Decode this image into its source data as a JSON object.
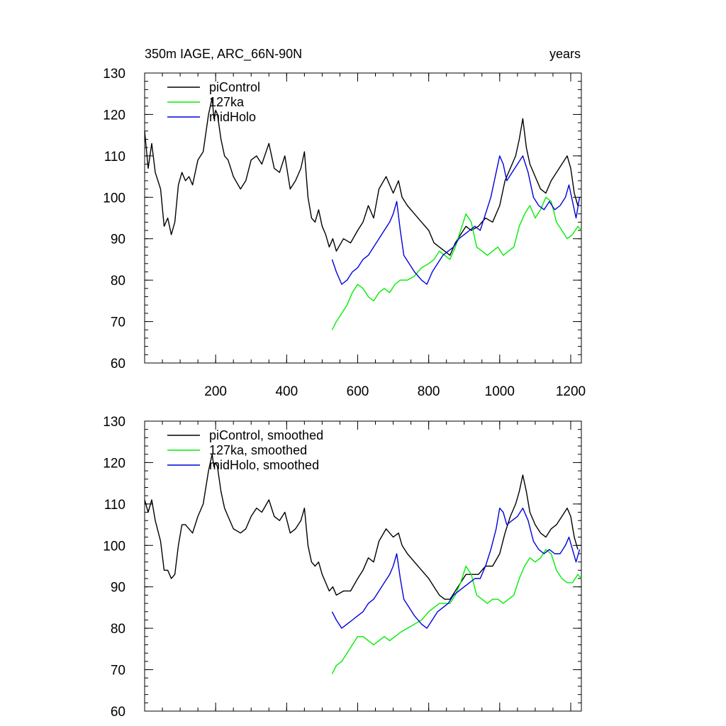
{
  "figure": {
    "title": "350m IAGE, ARC_66N-90N",
    "units": "years"
  },
  "chart_data": [
    {
      "type": "line",
      "title": "350m IAGE, ARC_66N-90N",
      "ylabel": "years",
      "xlim": [
        0,
        1230
      ],
      "ylim": [
        60,
        130
      ],
      "yticks": [
        60,
        70,
        80,
        90,
        100,
        110,
        120,
        130
      ],
      "xticks": [
        200,
        400,
        600,
        800,
        1000,
        1200
      ],
      "x_tick_labels_shown": true,
      "legend_position": "top-left",
      "series": [
        {
          "name": "piControl",
          "color": "#000000",
          "x": [
            0,
            10,
            20,
            30,
            45,
            55,
            65,
            75,
            85,
            95,
            105,
            115,
            125,
            135,
            150,
            165,
            180,
            190,
            195,
            200,
            205,
            210,
            215,
            225,
            235,
            250,
            270,
            285,
            300,
            315,
            330,
            350,
            365,
            380,
            395,
            410,
            425,
            440,
            450,
            460,
            470,
            480,
            490,
            500,
            510,
            520,
            530,
            540,
            560,
            580,
            600,
            615,
            630,
            645,
            660,
            680,
            700,
            715,
            725,
            740,
            760,
            780,
            800,
            815,
            830,
            845,
            860,
            875,
            890,
            905,
            920,
            940,
            960,
            980,
            1000,
            1015,
            1030,
            1045,
            1055,
            1065,
            1075,
            1085,
            1100,
            1115,
            1130,
            1145,
            1160,
            1175,
            1190,
            1200,
            1210,
            1220
          ],
          "y": [
            116,
            107,
            113,
            106,
            102,
            93,
            95,
            91,
            94,
            103,
            106,
            104,
            105,
            103,
            109,
            111,
            120,
            124,
            119,
            121,
            120,
            117,
            114,
            110,
            109,
            105,
            102,
            104,
            109,
            110,
            108,
            113,
            107,
            106,
            110,
            102,
            104,
            107,
            111,
            100,
            95,
            94,
            97,
            93,
            91,
            88,
            90,
            87,
            90,
            89,
            92,
            94,
            98,
            95,
            102,
            105,
            101,
            104,
            100,
            98,
            96,
            94,
            92,
            89,
            88,
            87,
            86,
            89,
            91,
            93,
            92,
            93,
            95,
            94,
            98,
            104,
            107,
            110,
            114,
            119,
            112,
            108,
            105,
            102,
            101,
            104,
            106,
            108,
            110,
            107,
            101,
            98
          ]
        },
        {
          "name": "127ka",
          "color": "#00ee00",
          "x": [
            528,
            540,
            555,
            570,
            585,
            600,
            615,
            630,
            645,
            660,
            675,
            690,
            705,
            720,
            740,
            760,
            780,
            800,
            815,
            830,
            845,
            860,
            875,
            890,
            905,
            920,
            935,
            950,
            965,
            980,
            995,
            1010,
            1025,
            1040,
            1055,
            1070,
            1085,
            1100,
            1115,
            1130,
            1145,
            1160,
            1175,
            1190,
            1205,
            1220,
            1230
          ],
          "y": [
            68,
            70,
            72,
            74,
            77,
            79,
            78,
            76,
            75,
            77,
            78,
            77,
            79,
            80,
            80,
            81,
            83,
            84,
            85,
            87,
            86,
            85,
            88,
            92,
            96,
            94,
            88,
            87,
            86,
            87,
            88,
            86,
            87,
            88,
            93,
            96,
            98,
            95,
            97,
            100,
            99,
            94,
            92,
            90,
            91,
            93,
            92
          ]
        },
        {
          "name": "midHolo",
          "color": "#0000dd",
          "x": [
            528,
            540,
            555,
            570,
            585,
            600,
            615,
            630,
            645,
            660,
            675,
            690,
            700,
            710,
            720,
            730,
            745,
            760,
            780,
            795,
            810,
            825,
            840,
            855,
            870,
            885,
            900,
            915,
            930,
            945,
            960,
            975,
            990,
            1000,
            1010,
            1020,
            1035,
            1050,
            1065,
            1080,
            1095,
            1110,
            1125,
            1140,
            1155,
            1170,
            1185,
            1195,
            1205,
            1215,
            1225
          ],
          "y": [
            85,
            82,
            79,
            80,
            82,
            83,
            85,
            86,
            88,
            90,
            92,
            94,
            96,
            99,
            92,
            86,
            84,
            82,
            80,
            79,
            82,
            84,
            86,
            87,
            88,
            90,
            91,
            92,
            93,
            92,
            96,
            100,
            106,
            110,
            108,
            104,
            106,
            108,
            110,
            106,
            100,
            98,
            97,
            99,
            97,
            98,
            100,
            103,
            99,
            95,
            100
          ]
        }
      ]
    },
    {
      "type": "line",
      "title": "",
      "ylabel": "",
      "xlim": [
        0,
        1230
      ],
      "ylim": [
        60,
        130
      ],
      "yticks": [
        60,
        70,
        80,
        90,
        100,
        110,
        120,
        130
      ],
      "xticks": [
        200,
        400,
        600,
        800,
        1000,
        1200
      ],
      "x_tick_labels_shown": false,
      "legend_position": "top-left",
      "series": [
        {
          "name": "piControl, smoothed",
          "color": "#000000",
          "x": [
            0,
            10,
            20,
            30,
            45,
            55,
            65,
            75,
            85,
            95,
            105,
            115,
            125,
            135,
            150,
            165,
            180,
            190,
            195,
            200,
            205,
            210,
            215,
            225,
            235,
            250,
            270,
            285,
            300,
            315,
            330,
            350,
            365,
            380,
            395,
            410,
            425,
            440,
            450,
            460,
            470,
            480,
            490,
            500,
            510,
            520,
            530,
            540,
            560,
            580,
            600,
            615,
            630,
            645,
            660,
            680,
            700,
            715,
            725,
            740,
            760,
            780,
            800,
            815,
            830,
            845,
            860,
            875,
            890,
            905,
            920,
            940,
            960,
            980,
            1000,
            1015,
            1030,
            1045,
            1055,
            1065,
            1075,
            1085,
            1100,
            1115,
            1130,
            1145,
            1160,
            1175,
            1190,
            1200,
            1210,
            1220
          ],
          "y": [
            111,
            108,
            111,
            106,
            101,
            94,
            94,
            92,
            93,
            100,
            105,
            105,
            104,
            103,
            107,
            110,
            118,
            122,
            119,
            120,
            119,
            116,
            113,
            109,
            107,
            104,
            103,
            104,
            107,
            109,
            108,
            111,
            107,
            106,
            108,
            103,
            104,
            106,
            109,
            100,
            96,
            95,
            96,
            93,
            91,
            89,
            90,
            88,
            89,
            89,
            92,
            94,
            97,
            96,
            101,
            104,
            102,
            103,
            100,
            98,
            96,
            94,
            92,
            90,
            88,
            87,
            87,
            89,
            91,
            93,
            93,
            93,
            95,
            95,
            98,
            103,
            107,
            110,
            113,
            117,
            113,
            108,
            105,
            103,
            102,
            104,
            105,
            107,
            109,
            107,
            102,
            99
          ]
        },
        {
          "name": "127ka, smoothed",
          "color": "#00ee00",
          "x": [
            528,
            540,
            555,
            570,
            585,
            600,
            615,
            630,
            645,
            660,
            675,
            690,
            705,
            720,
            740,
            760,
            780,
            800,
            815,
            830,
            845,
            860,
            875,
            890,
            905,
            920,
            935,
            950,
            965,
            980,
            995,
            1010,
            1025,
            1040,
            1055,
            1070,
            1085,
            1100,
            1115,
            1130,
            1145,
            1160,
            1175,
            1190,
            1205,
            1220,
            1230
          ],
          "y": [
            69,
            71,
            72,
            74,
            76,
            78,
            78,
            77,
            76,
            77,
            78,
            77,
            78,
            79,
            80,
            81,
            82,
            84,
            85,
            86,
            86,
            86,
            88,
            91,
            95,
            93,
            88,
            87,
            86,
            87,
            87,
            86,
            87,
            88,
            92,
            95,
            97,
            96,
            97,
            99,
            98,
            94,
            92,
            91,
            91,
            93,
            92
          ]
        },
        {
          "name": "midHolo, smoothed",
          "color": "#0000dd",
          "x": [
            528,
            540,
            555,
            570,
            585,
            600,
            615,
            630,
            645,
            660,
            675,
            690,
            700,
            710,
            720,
            730,
            745,
            760,
            780,
            795,
            810,
            825,
            840,
            855,
            870,
            885,
            900,
            915,
            930,
            945,
            960,
            975,
            990,
            1000,
            1010,
            1020,
            1035,
            1050,
            1065,
            1080,
            1095,
            1110,
            1125,
            1140,
            1155,
            1170,
            1185,
            1195,
            1205,
            1215,
            1225
          ],
          "y": [
            84,
            82,
            80,
            81,
            82,
            83,
            84,
            86,
            87,
            89,
            91,
            93,
            95,
            98,
            92,
            87,
            85,
            83,
            81,
            80,
            82,
            84,
            85,
            86,
            88,
            89,
            90,
            91,
            92,
            92,
            95,
            99,
            104,
            109,
            108,
            105,
            106,
            107,
            109,
            106,
            101,
            99,
            98,
            99,
            98,
            98,
            100,
            102,
            99,
            96,
            99
          ]
        }
      ]
    }
  ]
}
